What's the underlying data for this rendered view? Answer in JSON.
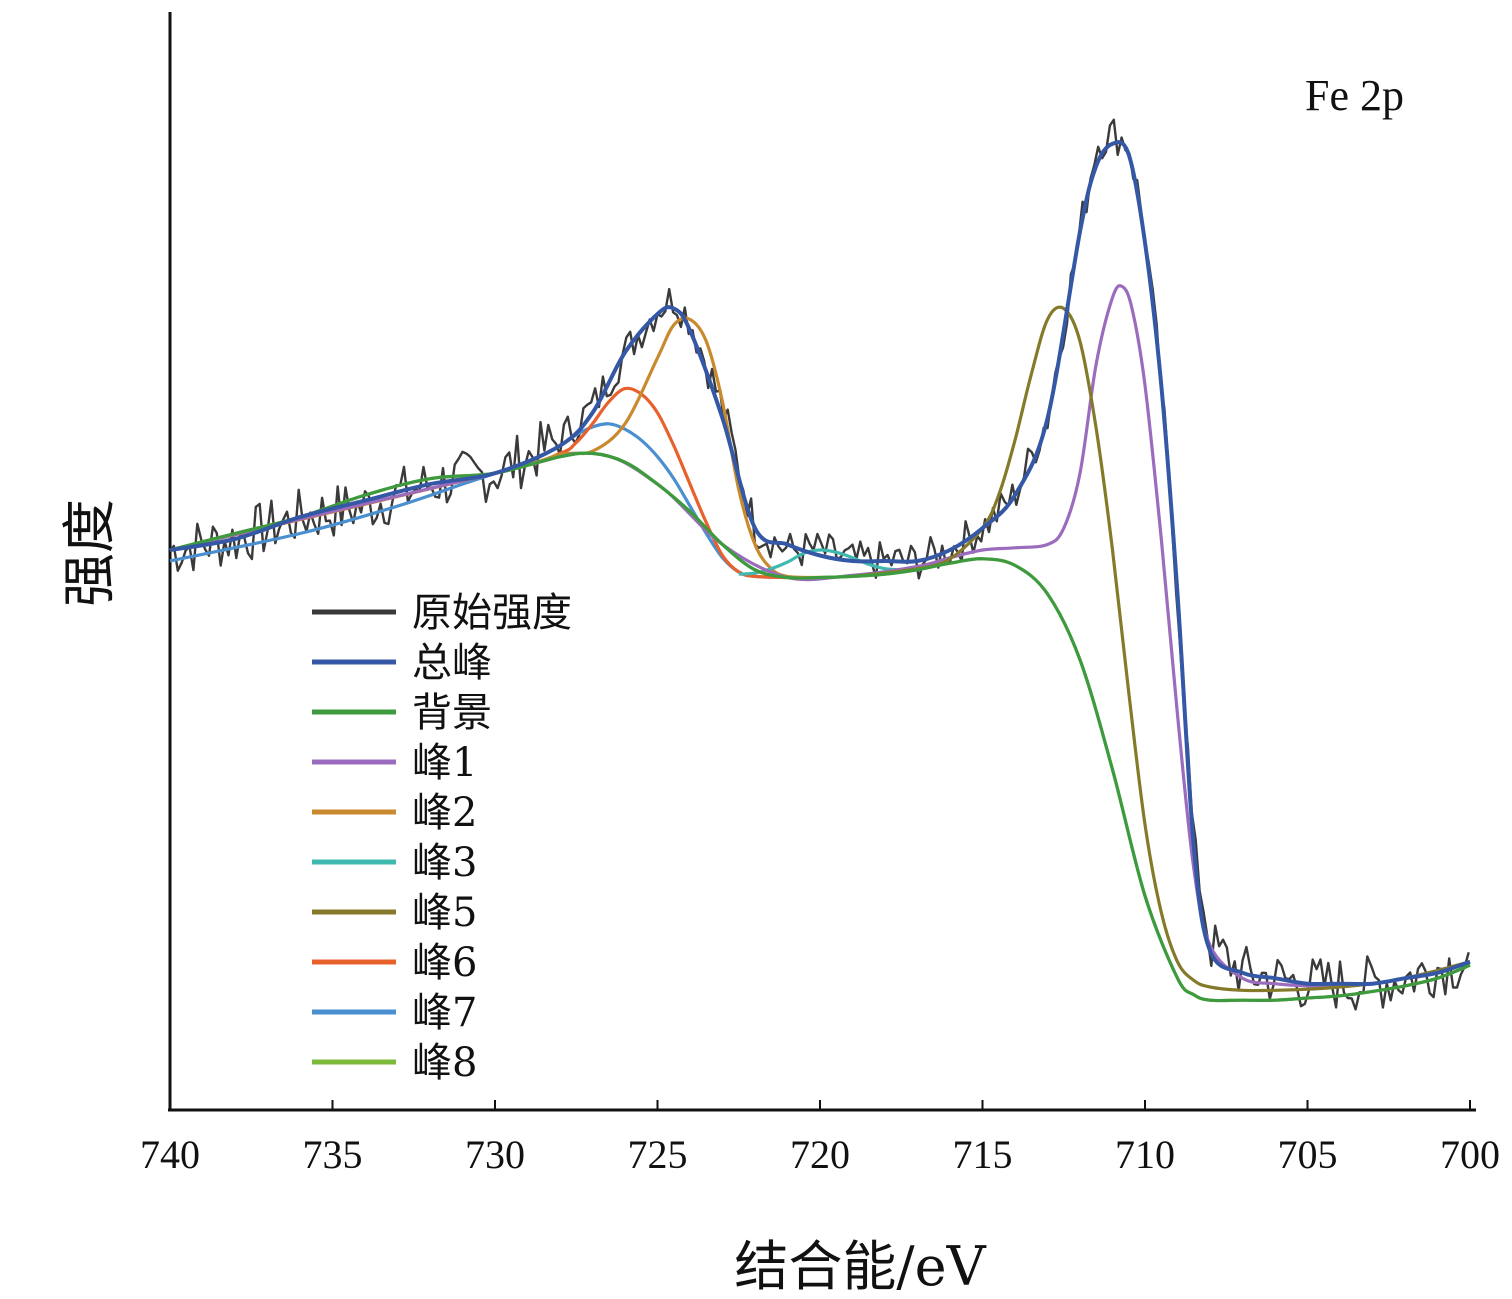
{
  "chart_data": {
    "type": "line",
    "annotation": "Fe 2p",
    "xlabel": "结合能/eV",
    "ylabel": "强度",
    "xlim": [
      740,
      700
    ],
    "x_reversed": true,
    "y_units": "arbitrary",
    "ylim": [
      0,
      100
    ],
    "xticks": [
      "740",
      "735",
      "730",
      "725",
      "720",
      "715",
      "710",
      "705",
      "700"
    ],
    "xtick_values": [
      740,
      735,
      730,
      725,
      720,
      715,
      710,
      705,
      700
    ],
    "legend_position": "lower-left",
    "grid": false,
    "series": [
      {
        "name": "原始强度",
        "color": "#3a3a3a",
        "noisy": true,
        "x": [
          740,
          738,
          736,
          734,
          732,
          730,
          728,
          727,
          726,
          725,
          724.5,
          724,
          723,
          722,
          721,
          720,
          719,
          718,
          717,
          716,
          715,
          714,
          713,
          712,
          711.5,
          711,
          710.5,
          710,
          709.5,
          709,
          708.5,
          708,
          707,
          706,
          705,
          704,
          703,
          702,
          701,
          700
        ],
        "y": [
          51,
          52,
          54,
          55,
          57,
          58,
          61,
          64,
          69,
          73,
          74,
          72,
          64,
          53,
          51,
          51,
          50,
          50,
          50,
          51,
          53,
          56,
          63,
          80,
          88,
          89,
          88,
          80,
          66,
          47,
          24,
          15,
          12.5,
          12,
          11.5,
          11.5,
          11.5,
          12,
          13,
          13.5
        ]
      },
      {
        "name": "总峰",
        "color": "#3558a6",
        "x": [
          740,
          738,
          736,
          734,
          732,
          730,
          728,
          727,
          726,
          725,
          724.5,
          724,
          723,
          722,
          721,
          720,
          719,
          718,
          717,
          716,
          715,
          714,
          713,
          712,
          711.5,
          711,
          710.5,
          710,
          709.5,
          709,
          708.5,
          708,
          707,
          706,
          705,
          704,
          703,
          702,
          701,
          700
        ],
        "y": [
          51,
          52,
          54,
          55.5,
          57,
          58,
          60.5,
          63.5,
          69,
          72.5,
          73,
          71,
          63,
          53,
          51.5,
          50.5,
          50,
          50,
          50,
          51,
          53,
          56,
          63,
          80,
          86,
          88,
          87,
          79,
          66,
          47,
          24,
          14.5,
          12.5,
          12,
          11.5,
          11.5,
          11.5,
          12,
          12.5,
          13.5
        ]
      },
      {
        "name": "背景",
        "color": "#3e9a3e",
        "x": [
          740,
          738,
          736,
          734,
          732,
          730,
          728,
          727,
          726,
          725,
          724,
          723,
          722,
          721,
          720,
          719,
          718,
          717,
          716,
          715,
          714,
          713,
          712,
          711,
          710,
          709,
          708.5,
          708,
          707,
          706,
          705,
          704,
          703,
          702,
          701,
          700
        ],
        "y": [
          51,
          52.5,
          54,
          56,
          57.5,
          58,
          59.5,
          59.8,
          59,
          57,
          54.5,
          51.5,
          49.2,
          48.5,
          48.5,
          48.6,
          48.8,
          49.2,
          49.8,
          50.2,
          49.6,
          47,
          41,
          31,
          19.5,
          12,
          10.5,
          10,
          10,
          10,
          10.2,
          10.4,
          10.8,
          11.3,
          12,
          13.2
        ]
      },
      {
        "name": "峰1",
        "color": "#9b6cbd",
        "x": [
          740,
          730,
          727,
          725,
          723,
          721,
          719,
          717,
          716,
          715,
          714,
          713,
          712.5,
          712,
          711.5,
          711,
          710.7,
          710.4,
          710,
          709.5,
          709,
          708.5,
          708,
          707,
          706,
          705,
          704,
          703,
          702,
          701,
          700
        ],
        "y": [
          51,
          58,
          59.8,
          57,
          51.5,
          48.5,
          48.7,
          49.5,
          50.3,
          51,
          51.2,
          51.5,
          53,
          58,
          68,
          74,
          75,
          73,
          66,
          52,
          36,
          22,
          15,
          12,
          11.5,
          11.3,
          11.3,
          11.5,
          12,
          12.7,
          13.5
        ]
      },
      {
        "name": "峰2",
        "color": "#c98a2e",
        "x": [
          740,
          730,
          728,
          727,
          726,
          725,
          724.5,
          724,
          723.5,
          723,
          722.5,
          722,
          721.5,
          721,
          720
        ],
        "y": [
          51,
          58,
          59.7,
          60,
          62.5,
          68.5,
          71.5,
          72,
          70,
          64.5,
          56.5,
          51.5,
          49.3,
          48.6,
          48.5
        ]
      },
      {
        "name": "峰3",
        "color": "#3fb8b0",
        "x": [
          722.5,
          722,
          721.5,
          721,
          720.5,
          720,
          719.5,
          719,
          718.5,
          718,
          717.5,
          717
        ],
        "y": [
          48.8,
          48.9,
          49.3,
          49.9,
          50.7,
          51,
          50.8,
          50.3,
          49.7,
          49.3,
          49.2,
          49.2
        ]
      },
      {
        "name": "峰5",
        "color": "#857a2a",
        "x": [
          719,
          717,
          716,
          715,
          714.5,
          714,
          713.5,
          713,
          712.5,
          712,
          711.5,
          711,
          710.5,
          710,
          709.5,
          709,
          708.5,
          708,
          707,
          706,
          705,
          704,
          703,
          702,
          701,
          700
        ],
        "y": [
          48.6,
          49.3,
          50.2,
          53,
          56,
          61,
          67,
          72,
          73,
          70,
          62,
          51,
          38,
          26,
          18,
          13.5,
          11.8,
          11.2,
          10.9,
          10.9,
          11,
          11.2,
          11.5,
          12,
          12.7,
          13.5
        ]
      },
      {
        "name": "峰6",
        "color": "#e8602c",
        "x": [
          740,
          730,
          728,
          727.5,
          727,
          726.5,
          726,
          725.5,
          725,
          724.5,
          724,
          723.5,
          723,
          722.5,
          722,
          721
        ],
        "y": [
          51,
          58,
          59.8,
          60.8,
          62.5,
          64.5,
          65.7,
          65.2,
          63.5,
          60.5,
          57,
          53.5,
          50.5,
          49,
          48.6,
          48.5
        ]
      },
      {
        "name": "峰7",
        "color": "#4a8fcf",
        "x": [
          740,
          736,
          733,
          731,
          729,
          728,
          727.5,
          727,
          726.5,
          726,
          725.5,
          725,
          724.5,
          724,
          723.5,
          723,
          722.5,
          722,
          721
        ],
        "y": [
          50,
          52.5,
          55,
          57,
          59,
          60.5,
          61.5,
          62.2,
          62.5,
          62,
          61,
          59.5,
          57.5,
          55,
          52.5,
          50.3,
          49,
          48.6,
          48.5
        ]
      },
      {
        "name": "峰8",
        "color": "#7dba3a",
        "x": [
          740,
          738,
          736,
          734,
          732,
          730,
          728,
          727,
          726,
          725,
          724,
          723,
          722,
          721,
          720,
          719,
          718,
          717,
          716,
          715,
          714,
          713,
          712,
          711,
          710,
          709,
          708.5,
          708,
          707,
          706,
          705,
          704,
          703,
          702,
          701,
          700
        ],
        "y": [
          51,
          52.5,
          54,
          56,
          57.5,
          58,
          59.5,
          59.8,
          59,
          57,
          54.5,
          51.5,
          49.2,
          48.5,
          48.5,
          48.6,
          48.8,
          49.2,
          49.8,
          50.2,
          49.6,
          47,
          41,
          31,
          19.5,
          12,
          10.5,
          10,
          10,
          10,
          10.2,
          10.4,
          10.8,
          11.3,
          12,
          13.2
        ]
      }
    ]
  }
}
